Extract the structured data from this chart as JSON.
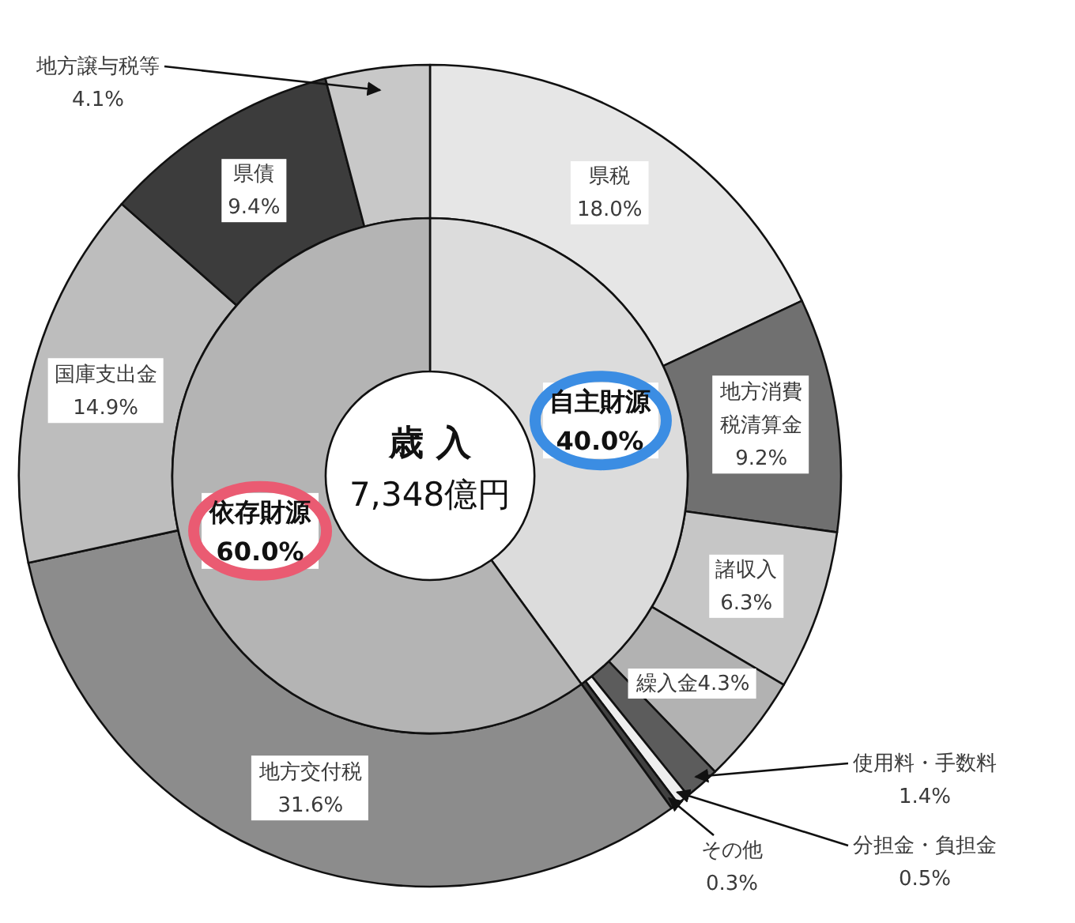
{
  "chart_data": [
    {
      "type": "donut",
      "categories": [
        "県税",
        "地方消費税清算金",
        "諸収入",
        "繰入金",
        "使用料・手数料",
        "分担金・負担金",
        "その他",
        "地方交付税",
        "国庫支出金",
        "県債",
        "地方譲与税等"
      ],
      "values": [
        18.0,
        9.2,
        6.3,
        4.3,
        1.4,
        0.5,
        0.3,
        31.6,
        14.9,
        9.4,
        4.1
      ],
      "value_labels": [
        "18.0%",
        "9.2%",
        "6.3%",
        "4.3%",
        "1.4%",
        "0.5%",
        "0.3%",
        "31.6%",
        "14.9%",
        "9.4%",
        "4.1%"
      ],
      "colors": [
        "#e6e6e6",
        "#707070",
        "#c6c6c6",
        "#b2b2b2",
        "#5c5c5c",
        "#eeeeee",
        "#404040",
        "#8c8c8c",
        "#bdbdbd",
        "#3c3c3c",
        "#c8c8c8"
      ]
    },
    {
      "type": "donut",
      "title": "歳 入",
      "subtitle": "7,348億円",
      "categories": [
        "自主財源",
        "依存財源"
      ],
      "values": [
        40.0,
        60.0
      ],
      "value_labels": [
        "40.0%",
        "60.0%"
      ],
      "colors": [
        "#dcdcdc",
        "#b4b4b4"
      ]
    }
  ]
}
